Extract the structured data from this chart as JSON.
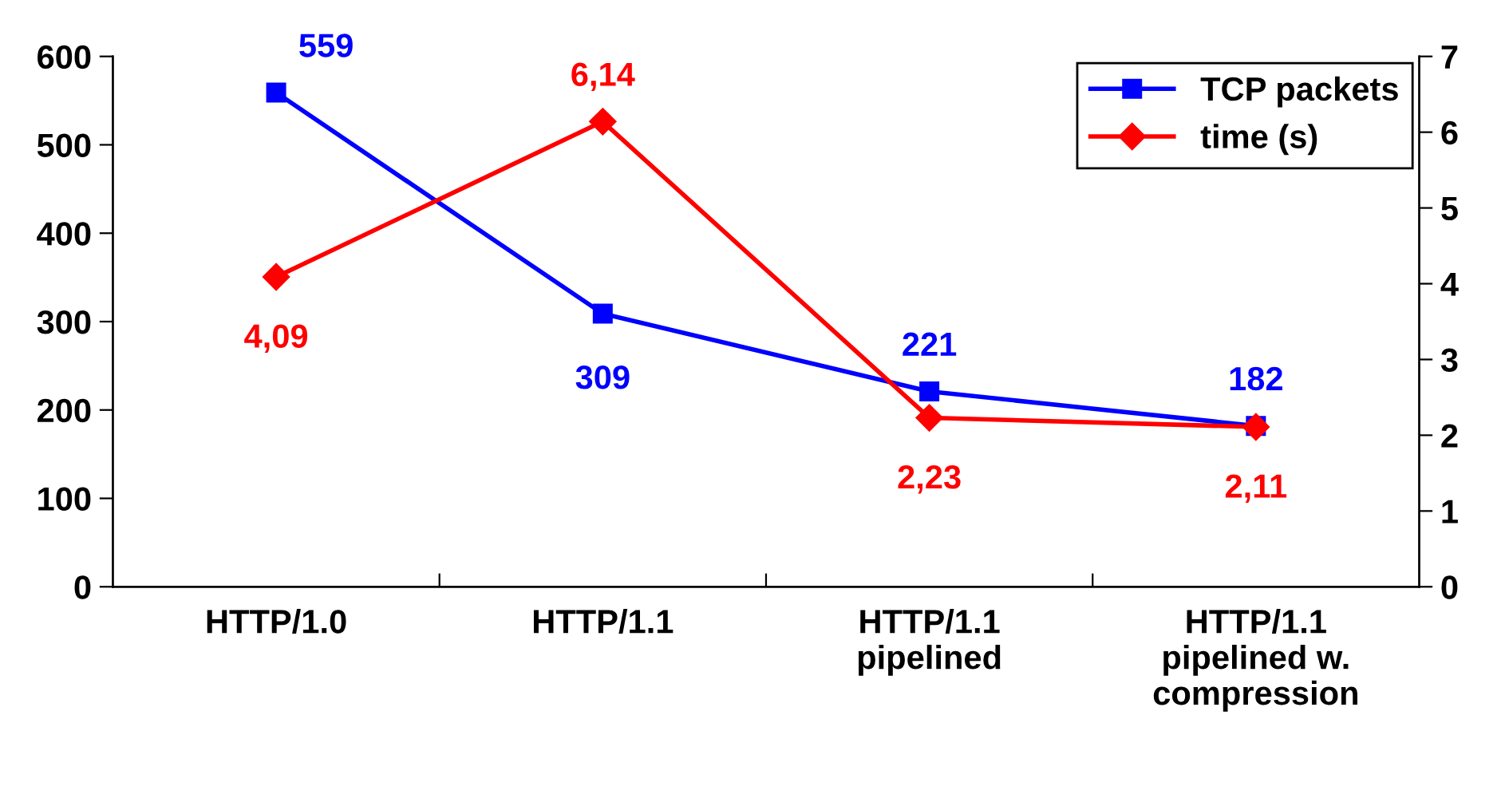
{
  "chart_data": {
    "type": "line",
    "categories": [
      "HTTP/1.0",
      "HTTP/1.1",
      "HTTP/1.1\npipelined",
      "HTTP/1.1\npipelined w.\ncompression"
    ],
    "series": [
      {
        "name": "TCP packets",
        "color": "#0000ff",
        "values": [
          559,
          309,
          221,
          182
        ],
        "value_labels": [
          "559",
          "309",
          "221",
          "182"
        ],
        "marker": "square"
      },
      {
        "name": "time (s)",
        "color": "#ff0000",
        "values": [
          4.09,
          6.14,
          2.23,
          2.11
        ],
        "value_labels": [
          "4,09",
          "6,14",
          "2,23",
          "2,11"
        ],
        "axis": "y2",
        "marker": "diamond"
      }
    ],
    "ylim": [
      0,
      600
    ],
    "yticks": [
      0,
      100,
      200,
      300,
      400,
      500,
      600
    ],
    "y2lim": [
      0,
      7
    ],
    "y2ticks": [
      0,
      1,
      2,
      3,
      4,
      5,
      6,
      7
    ],
    "grid": false,
    "legend": "top right",
    "line_style": "solid"
  }
}
